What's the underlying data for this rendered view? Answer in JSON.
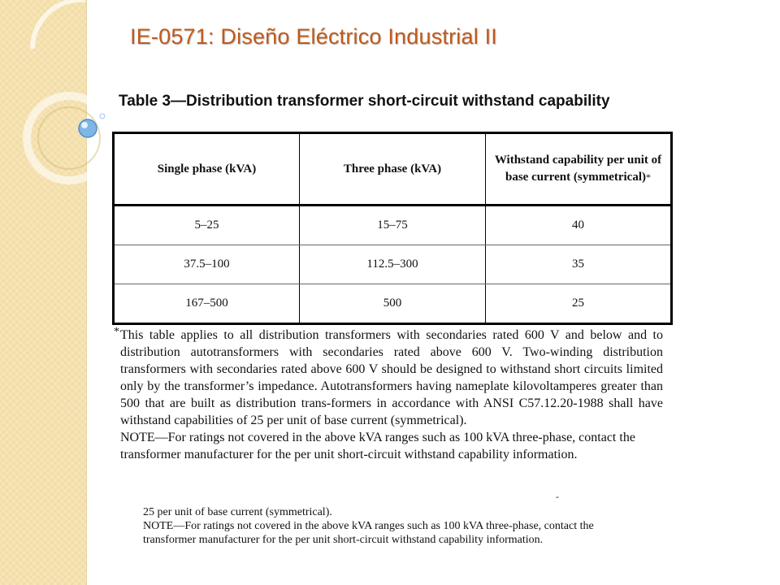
{
  "slide": {
    "title": "IE-0571: Diseño Eléctrico Industrial II",
    "accent": "#c05a1a",
    "strip_color": "#f5e1ad"
  },
  "table": {
    "caption": "Table 3—Distribution transformer short-circuit withstand capability",
    "headers": [
      "Single phase (kVA)",
      "Three phase (kVA)",
      "Withstand capability per unit of base current (symmetrical)"
    ],
    "header_mark": "*",
    "rows": [
      [
        "5–25",
        "15–75",
        "40"
      ],
      [
        "37.5–100",
        "112.5–300",
        "35"
      ],
      [
        "167–500",
        "500",
        "25"
      ]
    ]
  },
  "footnote": {
    "mark": "*",
    "text": "This table applies to all distribution transformers with secondaries rated 600 V and below and to distribution autotransformers with secondaries rated above 600 V. Two-winding distribution transformers with secondaries rated above 600 V should be designed to withstand short circuits limited only by the transformer’s impedance. Autotransformers having nameplate kilovoltamperes greater than 500 that are built as distribution trans-formers in accordance with ANSI C57.12.20-1988 shall have withstand capabilities of 25 per unit of base current (symmetrical).",
    "note": "NOTE—For ratings not covered in the above kVA ranges such as 100 kVA three-phase, contact the transformer manufacturer for the per unit short-circuit withstand capability information."
  },
  "duplicate": {
    "line1": "25 per unit of base current (symmetrical).",
    "note": "NOTE—For ratings not covered in the above kVA ranges such as 100 kVA three-phase, contact the transformer manufacturer for the per unit short-circuit withstand capability information."
  }
}
